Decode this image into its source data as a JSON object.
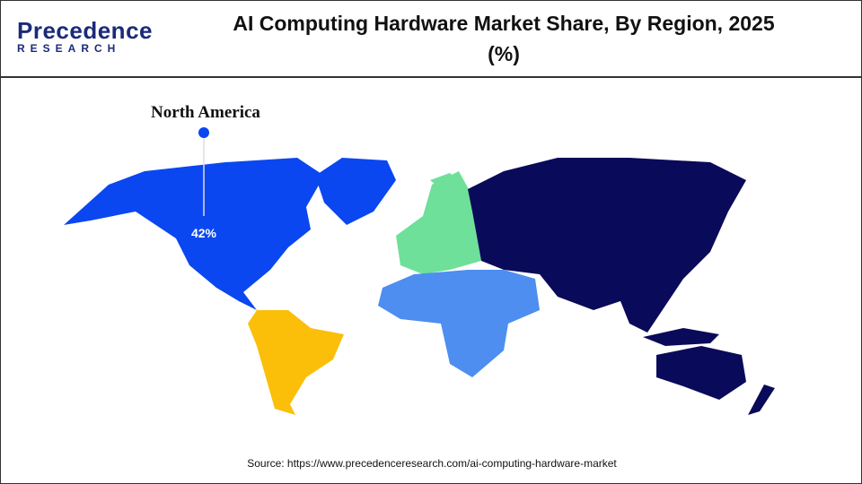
{
  "header": {
    "logo_name": "Precedence",
    "logo_sub": "RESEARCH",
    "title": "AI Computing Hardware Market Share, By Region, 2025 (%)"
  },
  "callout": {
    "region": "North America",
    "share": 42,
    "share_label": "42%"
  },
  "footer": {
    "source": "Source: https://www.precedenceresearch.com/ai-computing-hardware-market"
  }
}
